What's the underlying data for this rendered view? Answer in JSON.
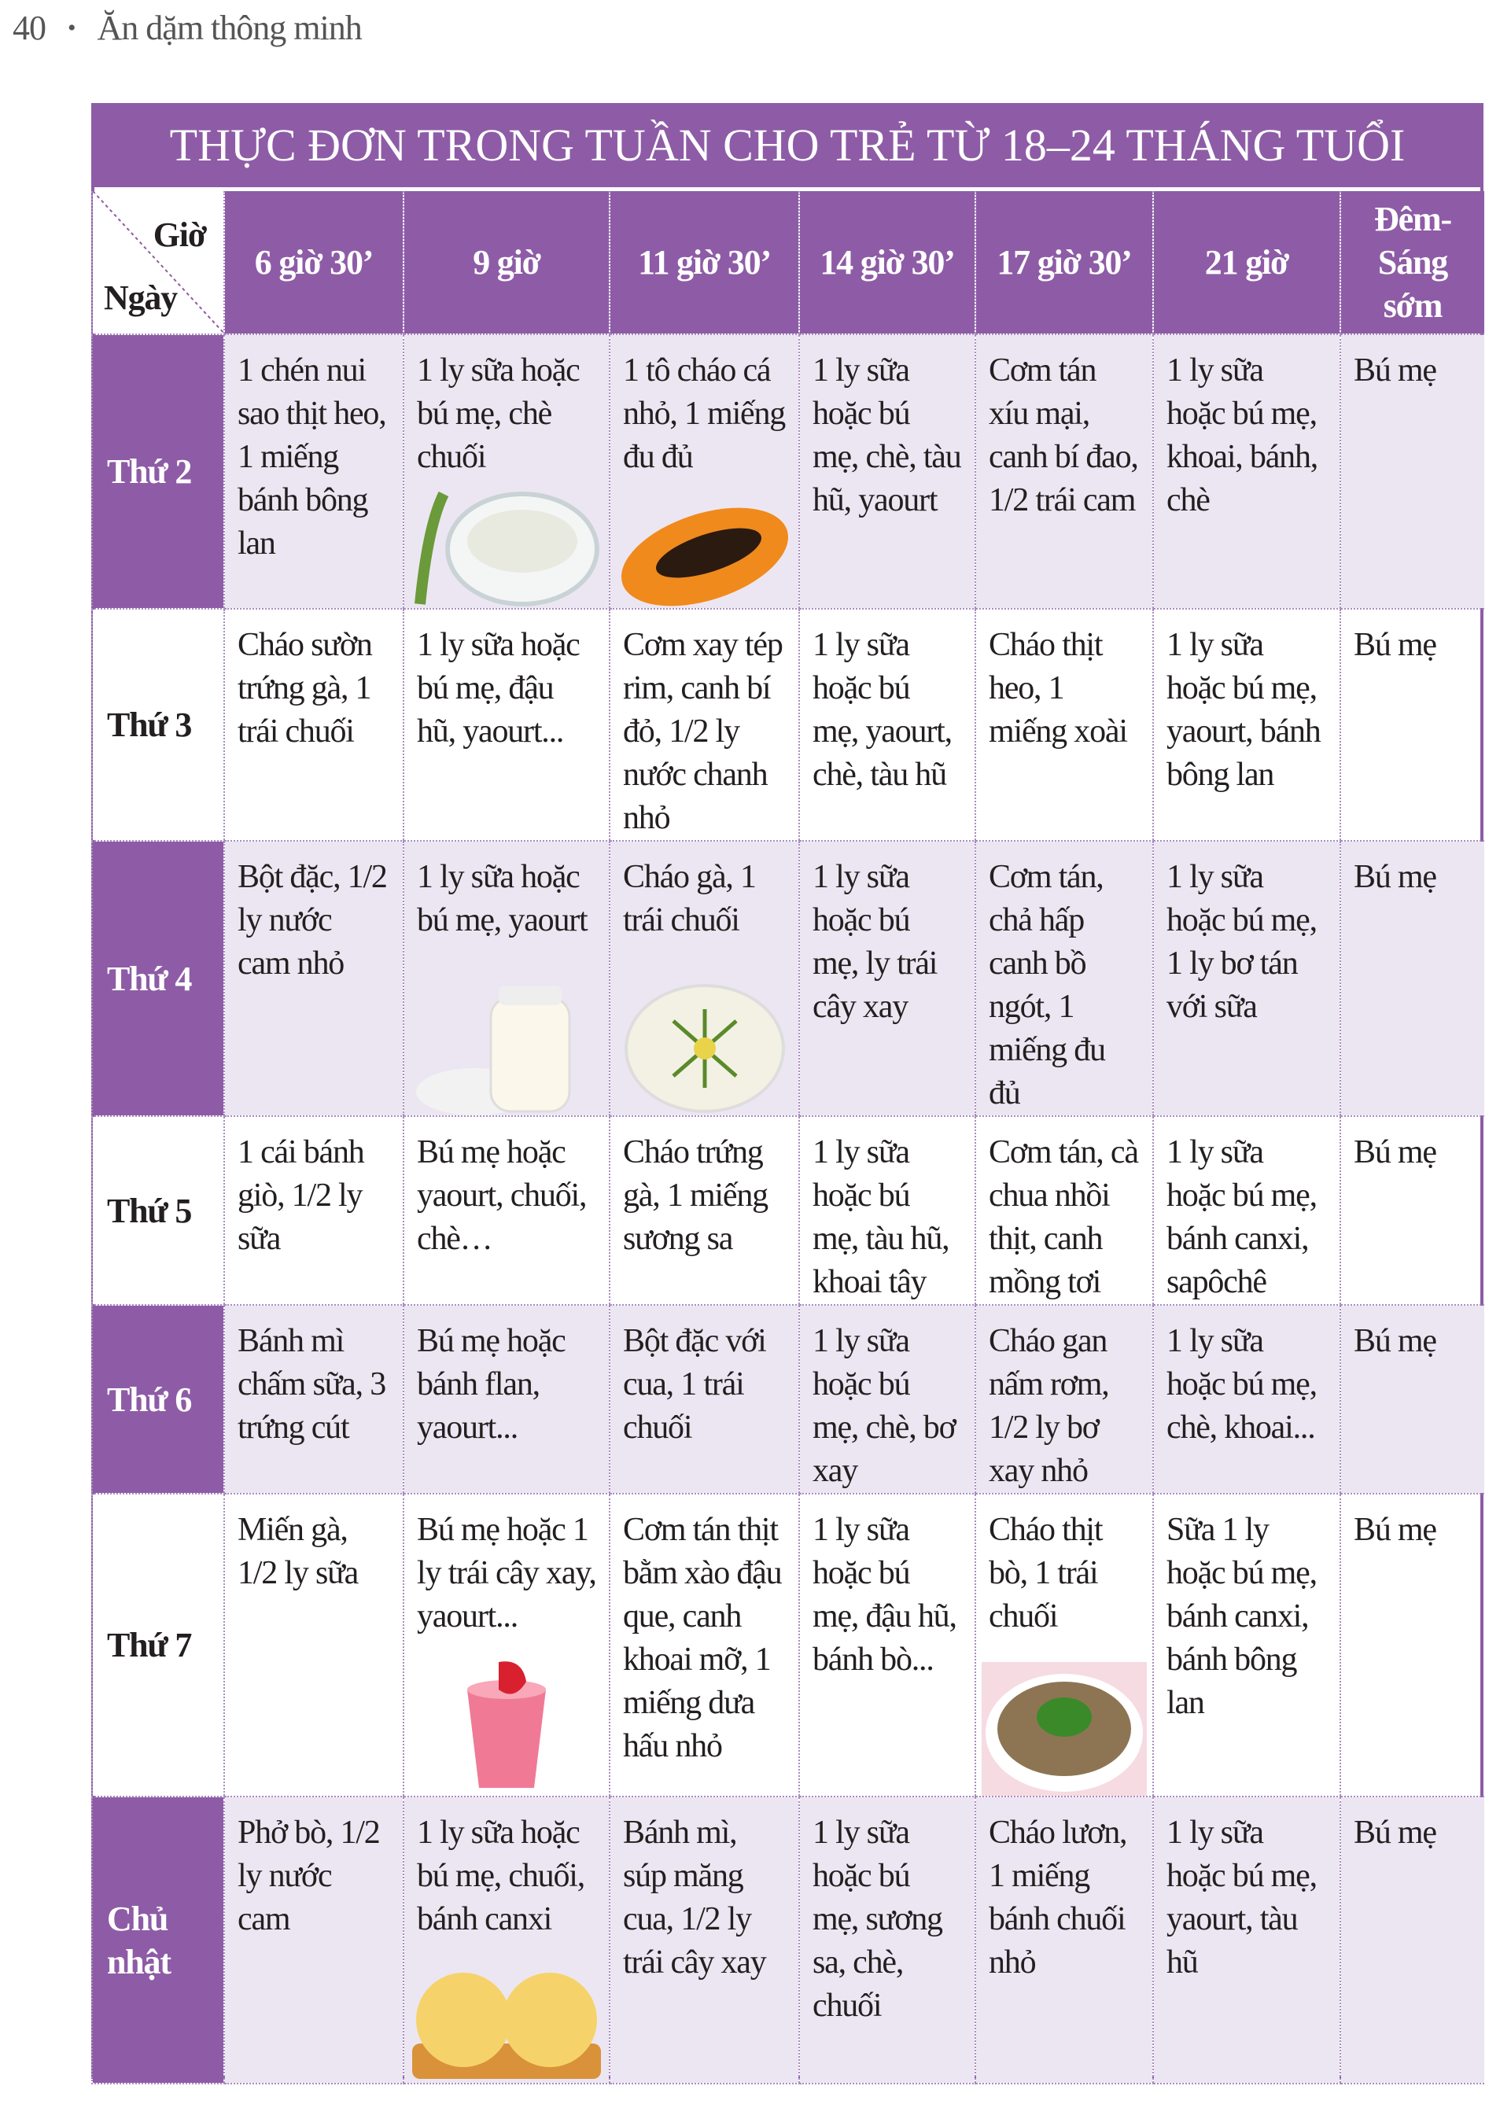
{
  "running_header": {
    "page_number": "40",
    "bullet": "•",
    "book_title": "Ăn dặm thông minh"
  },
  "title": "THỰC ĐƠN TRONG TUẦN CHO TRẺ TỪ 18–24 THÁNG TUỔI",
  "colors": {
    "accent": "#8e5ca6",
    "alt_row": "#ece6f2"
  },
  "corner": {
    "top": "Giờ",
    "bottom": "Ngày"
  },
  "columns": [
    "6 giờ 30’",
    "9 giờ",
    "11 giờ 30’",
    "14 giờ 30’",
    "17 giờ 30’",
    "21 giờ",
    "Đêm- Sáng sớm"
  ],
  "rows": [
    {
      "day": "Thứ 2",
      "cells": [
        "1 chén nui sao thịt heo, 1 miếng bánh bông lan",
        "1 ly sữa hoặc bú mẹ, chè chuối",
        "1 tô cháo cá nhỏ, 1 miếng đu đủ",
        "1 ly sữa hoặc bú mẹ, chè, tàu hũ, yaourt",
        "Cơm tán xíu mại, canh bí đao, 1/2 trái cam",
        "1 ly sữa hoặc bú mẹ, khoai, bánh, chè",
        "Bú mẹ"
      ],
      "images": {
        "1": "bowl-dessert-image",
        "2": "papaya-image"
      }
    },
    {
      "day": "Thứ 3",
      "cells": [
        "Cháo sườn trứng gà, 1 trái chuối",
        "1 ly sữa hoặc bú mẹ, đậu hũ, yaourt...",
        "Cơm xay tép rim, canh bí đỏ, 1/2 ly nước chanh nhỏ",
        "1 ly sữa hoặc bú mẹ, yaourt, chè, tàu hũ",
        "Cháo thịt heo, 1 miếng xoài",
        "1 ly sữa hoặc bú mẹ, yaourt, bánh bông lan",
        "Bú mẹ"
      ]
    },
    {
      "day": "Thứ 4",
      "cells": [
        "Bột đặc, 1/2 ly nước cam nhỏ",
        "1 ly sữa hoặc bú mẹ, yaourt",
        "Cháo gà, 1 trái chuối",
        "1 ly sữa hoặc bú mẹ, ly trái cây xay",
        "Cơm tán, chả hấp canh bồ ngót, 1 miếng đu đủ",
        "1 ly sữa hoặc bú mẹ, 1 ly bơ tán với sữa",
        "Bú mẹ"
      ],
      "images": {
        "1": "yogurt-jar-image",
        "2": "porridge-bowl-image"
      }
    },
    {
      "day": "Thứ 5",
      "cells": [
        "1 cái bánh giò, 1/2 ly sữa",
        "Bú mẹ hoặc yaourt, chuối, chè…",
        "Cháo trứng gà, 1 miếng sương sa",
        "1 ly sữa hoặc bú mẹ, tàu hũ, khoai tây",
        "Cơm tán, cà chua nhồi thịt, canh mồng tơi",
        "1 ly sữa hoặc bú mẹ, bánh canxi, sapôchê",
        "Bú mẹ"
      ]
    },
    {
      "day": "Thứ 6",
      "cells": [
        "Bánh mì chấm sữa, 3 trứng cút",
        "Bú mẹ hoặc bánh flan, yaourt...",
        "Bột đặc với cua, 1 trái chuối",
        "1 ly sữa hoặc bú mẹ, chè, bơ xay",
        "Cháo gan nấm rơm, 1/2 ly bơ xay nhỏ",
        "1 ly sữa hoặc bú mẹ, chè, khoai...",
        "Bú mẹ"
      ]
    },
    {
      "day": "Thứ 7",
      "cells": [
        "Miến gà, 1/2 ly sữa",
        "Bú mẹ hoặc 1 ly trái cây xay, yaourt...",
        "Cơm tán thịt bằm xào đậu que, canh khoai mỡ, 1 miếng dưa hấu nhỏ",
        "1 ly sữa hoặc bú mẹ, đậu hũ, bánh bò...",
        "Cháo thịt bò, 1 trái chuối",
        "Sữa 1 ly hoặc bú mẹ, bánh canxi, bánh bông lan",
        "Bú mẹ"
      ],
      "images": {
        "1": "strawberry-smoothie-image",
        "4": "beef-porridge-image"
      }
    },
    {
      "day": "Chủ nhật",
      "cells": [
        "Phở bò, 1/2 ly nước cam",
        "1 ly sữa hoặc bú mẹ, chuối, bánh canxi",
        "Bánh mì, súp măng cua, 1/2 ly trái cây xay",
        "1 ly sữa hoặc bú mẹ, sương sa, chè, chuối",
        "Cháo lươn, 1 miếng bánh chuối nhỏ",
        "1 ly sữa hoặc bú mẹ, yaourt, tàu hũ",
        "Bú mẹ"
      ],
      "images": {
        "1": "cookies-image"
      }
    }
  ]
}
